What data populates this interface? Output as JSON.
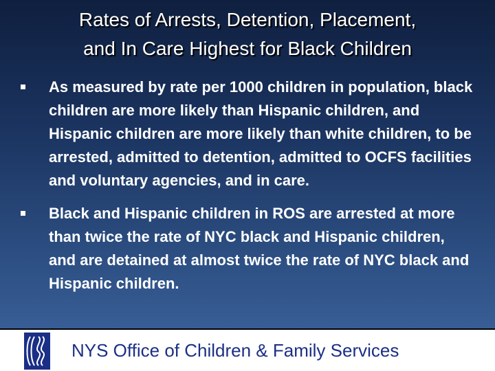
{
  "slide": {
    "title_line1": "Rates of Arrests, Detention, Placement,",
    "title_line2": "and In Care Highest for Black Children",
    "bullets": [
      "As measured by rate per 1000 children in population, black children are more likely than Hispanic children, and Hispanic children are more likely than white children, to be arrested, admitted to detention, admitted to OCFS facilities and voluntary agencies, and in care.",
      "Black and Hispanic children in ROS are arrested at more than twice the rate of NYC black and Hispanic children, and are detained at almost twice the rate of NYC black and Hispanic children."
    ]
  },
  "footer": {
    "org_name": "NYS Office of Children & Family Services",
    "logo_icon": "ocfs-logo-icon"
  },
  "colors": {
    "background_top": "#0f1f3f",
    "background_bottom": "#3e67a0",
    "text": "#ffffff",
    "footer_text": "#1b2f86"
  }
}
